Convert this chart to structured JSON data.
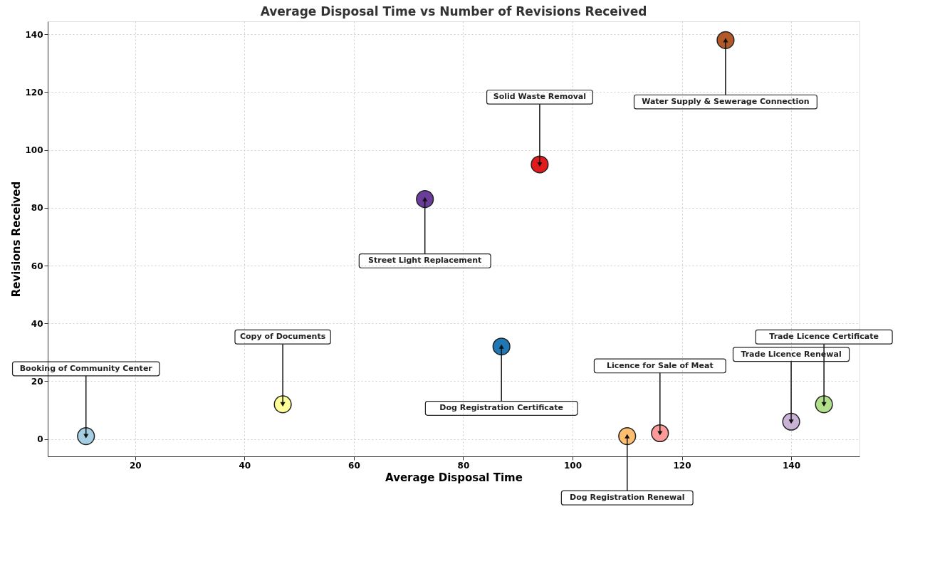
{
  "chart_data": {
    "type": "scatter",
    "title": "Average Disposal Time vs Number of Revisions Received",
    "xlabel": "Average Disposal Time",
    "ylabel": "Revisions Received",
    "xlim": [
      4,
      152.5
    ],
    "ylim": [
      -6,
      144.5
    ],
    "xticks": [
      20,
      40,
      60,
      80,
      100,
      120,
      140
    ],
    "yticks": [
      0,
      20,
      40,
      60,
      80,
      100,
      120,
      140
    ],
    "grid": true,
    "marker": "circle",
    "x": [
      11,
      47,
      73,
      94,
      87,
      128,
      110,
      116,
      140,
      146
    ],
    "values": [
      1,
      12,
      83,
      95,
      32,
      138,
      1,
      2,
      6,
      12
    ],
    "colors": [
      "#a6cee3",
      "#ffff99",
      "#6a3d9a",
      "#e31a1c",
      "#1f78b4",
      "#b15928",
      "#fdbf6f",
      "#fb9a99",
      "#cab2d6",
      "#b2df8a"
    ],
    "annotations": [
      {
        "text": "Booking of Community Center",
        "x": 11,
        "y": 1
      },
      {
        "text": "Copy of Documents",
        "x": 47,
        "y": 12
      },
      {
        "text": "Street Light Replacement",
        "x": 73,
        "y": 83
      },
      {
        "text": "Solid Waste Removal",
        "x": 94,
        "y": 95
      },
      {
        "text": "Dog Registration Certificate",
        "x": 87,
        "y": 32
      },
      {
        "text": "Water Supply & Sewerage Connection",
        "x": 128,
        "y": 138
      },
      {
        "text": "Dog Registration Renewal",
        "x": 110,
        "y": 1
      },
      {
        "text": "Licence for Sale of Meat",
        "x": 116,
        "y": 2
      },
      {
        "text": "Trade Licence Renewal",
        "x": 140,
        "y": 6
      },
      {
        "text": "Trade Licence Certificate",
        "x": 146,
        "y": 12
      }
    ]
  }
}
